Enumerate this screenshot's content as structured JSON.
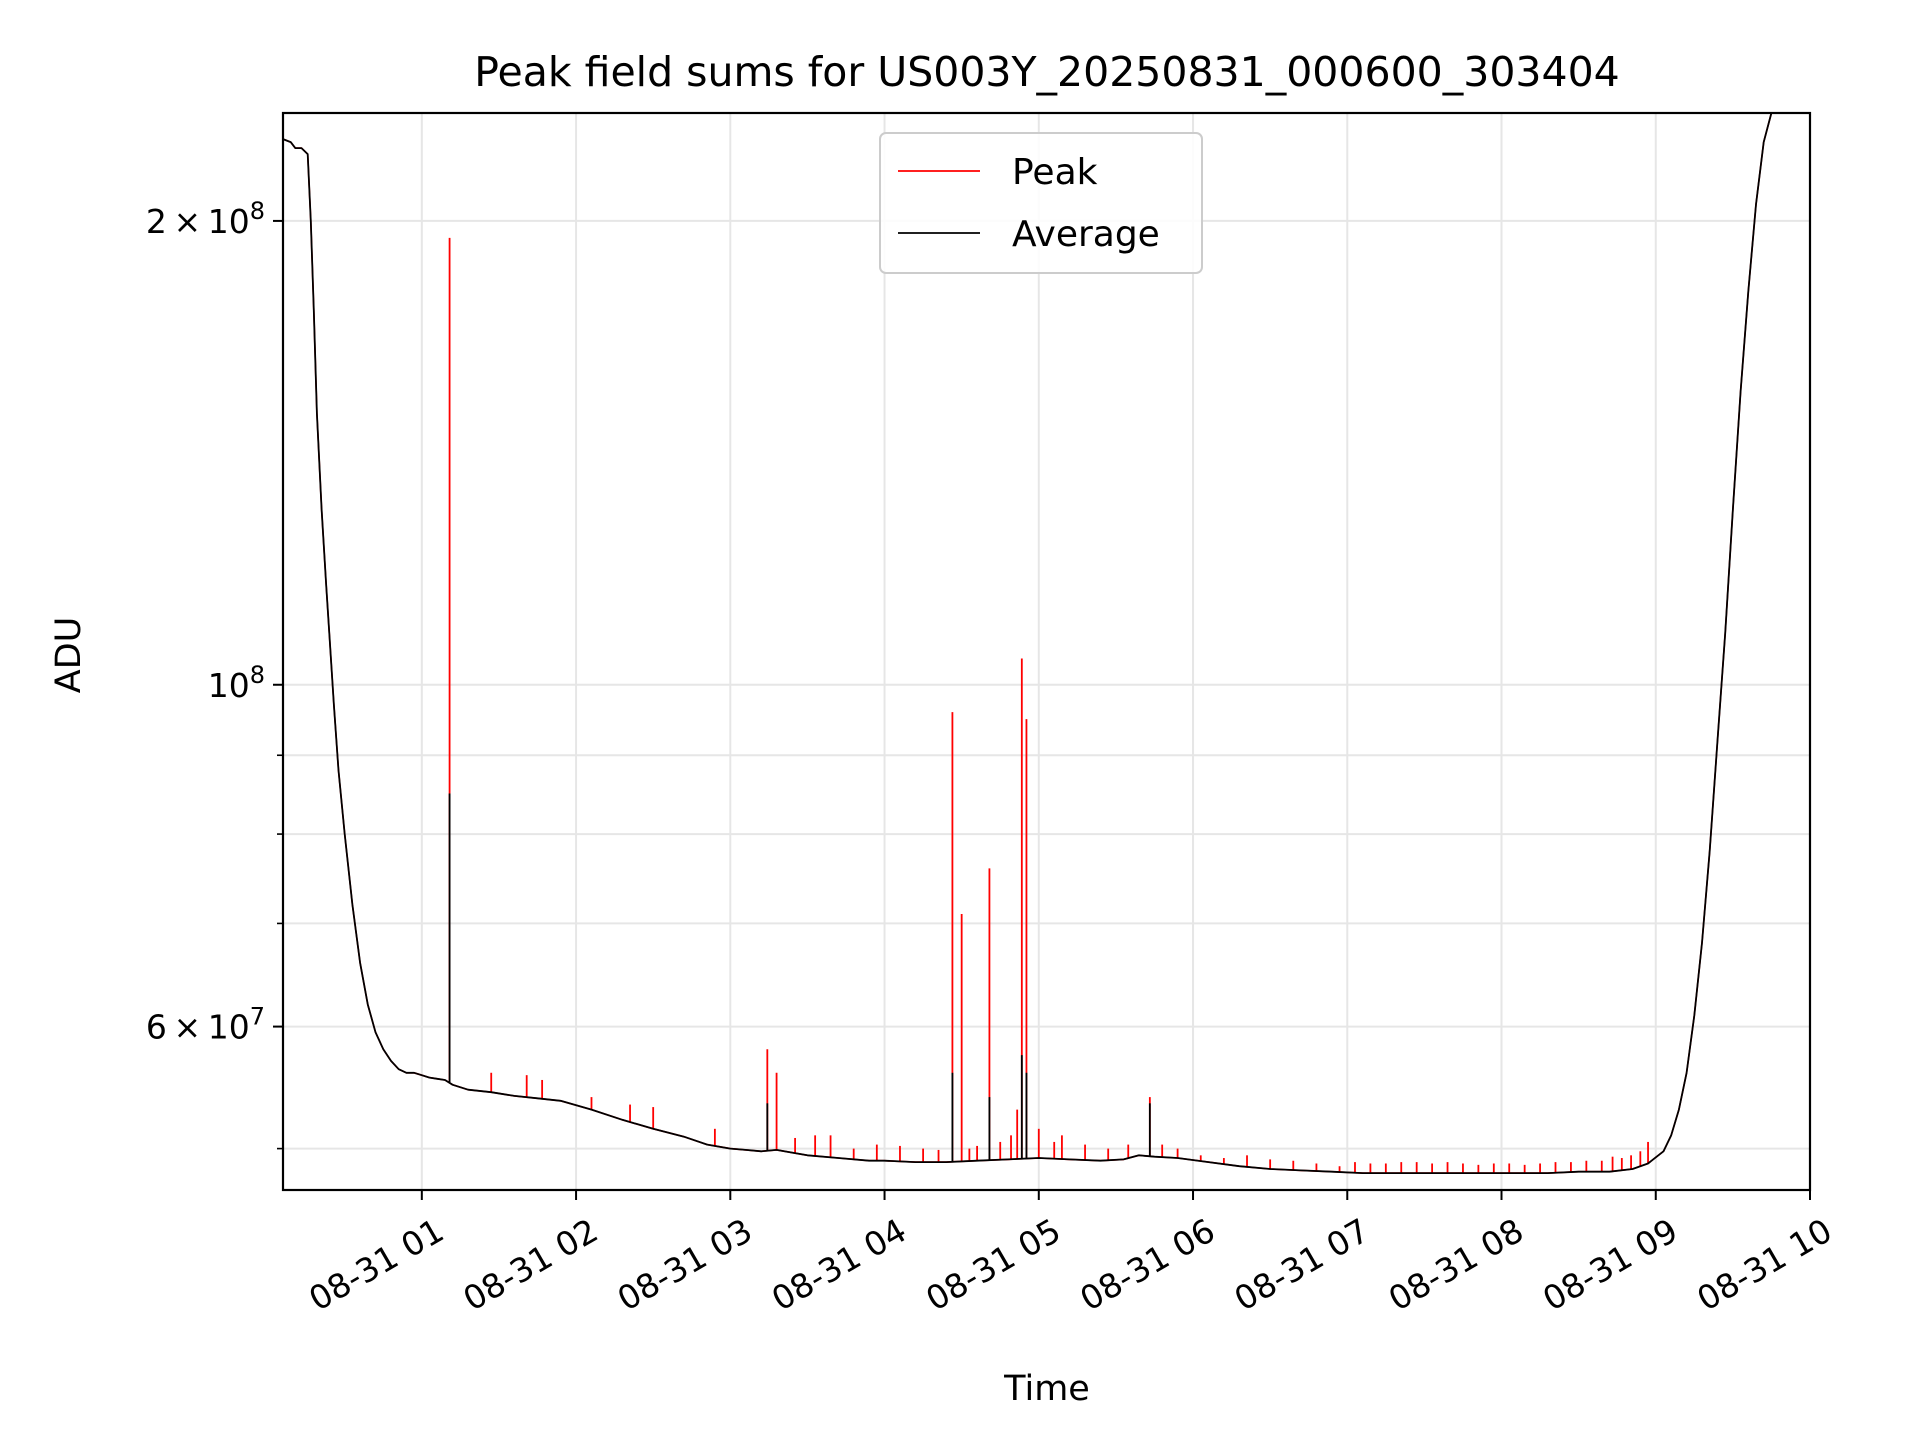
{
  "chart_data": {
    "type": "line",
    "title": "Peak field sums for US003Y_20250831_000600_303404",
    "xlabel": "Time",
    "ylabel": "ADU",
    "y_scale": "log",
    "grid": true,
    "legend_position": "top-center",
    "xlim": [
      0.1,
      10.0
    ],
    "ylim": [
      47000000,
      235000000
    ],
    "x_ticks": [
      {
        "value": 1,
        "label": "08-31 01"
      },
      {
        "value": 2,
        "label": "08-31 02"
      },
      {
        "value": 3,
        "label": "08-31 03"
      },
      {
        "value": 4,
        "label": "08-31 04"
      },
      {
        "value": 5,
        "label": "08-31 05"
      },
      {
        "value": 6,
        "label": "08-31 06"
      },
      {
        "value": 7,
        "label": "08-31 07"
      },
      {
        "value": 8,
        "label": "08-31 08"
      },
      {
        "value": 9,
        "label": "08-31 09"
      },
      {
        "value": 10,
        "label": "08-31 10"
      }
    ],
    "y_ticks_major": [
      {
        "value": 60000000,
        "base": "6",
        "exp": "7"
      },
      {
        "value": 100000000,
        "base": "",
        "exp": "8"
      },
      {
        "value": 200000000,
        "base": "2",
        "exp": "8"
      }
    ],
    "y_ticks_minor": [
      50000000,
      70000000,
      80000000,
      90000000
    ],
    "x_unit_note": "hours after 2025-08-31 00:00",
    "series": [
      {
        "name": "Peak",
        "color": "#ff0000",
        "points": [
          [
            0.1,
            226000000
          ],
          [
            0.15,
            225000000
          ],
          [
            0.18,
            223000000
          ],
          [
            0.22,
            223000000
          ],
          [
            0.26,
            221000000
          ],
          [
            0.28,
            200000000
          ],
          [
            0.3,
            175000000
          ],
          [
            0.32,
            150000000
          ],
          [
            0.35,
            130000000
          ],
          [
            0.38,
            116000000
          ],
          [
            0.4,
            108000000
          ],
          [
            0.43,
            97000000
          ],
          [
            0.46,
            88000000
          ],
          [
            0.5,
            80000000
          ],
          [
            0.55,
            72000000
          ],
          [
            0.6,
            66000000
          ],
          [
            0.65,
            62000000
          ],
          [
            0.7,
            59500000
          ],
          [
            0.75,
            58000000
          ],
          [
            0.8,
            57000000
          ],
          [
            0.85,
            56300000
          ],
          [
            0.9,
            56000000
          ],
          [
            0.95,
            56000000
          ],
          [
            1.0,
            55800000
          ],
          [
            1.05,
            55600000
          ],
          [
            1.1,
            55500000
          ],
          [
            1.15,
            55400000
          ],
          [
            1.2,
            55000000
          ],
          [
            1.3,
            54600000
          ],
          [
            1.45,
            54400000
          ],
          [
            1.6,
            54100000
          ],
          [
            1.75,
            53900000
          ],
          [
            1.9,
            53700000
          ],
          [
            2.1,
            53000000
          ],
          [
            2.3,
            52200000
          ],
          [
            2.5,
            51500000
          ],
          [
            2.7,
            50900000
          ],
          [
            2.85,
            50300000
          ],
          [
            3.0,
            50000000
          ],
          [
            3.1,
            49900000
          ],
          [
            3.2,
            49800000
          ],
          [
            3.3,
            49900000
          ],
          [
            3.4,
            49700000
          ],
          [
            3.5,
            49500000
          ],
          [
            3.7,
            49300000
          ],
          [
            3.9,
            49100000
          ],
          [
            4.0,
            49100000
          ],
          [
            4.2,
            49000000
          ],
          [
            4.4,
            49000000
          ],
          [
            4.6,
            49100000
          ],
          [
            4.8,
            49200000
          ],
          [
            5.0,
            49300000
          ],
          [
            5.2,
            49200000
          ],
          [
            5.4,
            49100000
          ],
          [
            5.55,
            49200000
          ],
          [
            5.65,
            49500000
          ],
          [
            5.75,
            49400000
          ],
          [
            5.9,
            49300000
          ],
          [
            6.1,
            49000000
          ],
          [
            6.3,
            48700000
          ],
          [
            6.5,
            48500000
          ],
          [
            6.7,
            48400000
          ],
          [
            6.9,
            48300000
          ],
          [
            7.1,
            48200000
          ],
          [
            7.3,
            48200000
          ],
          [
            7.5,
            48200000
          ],
          [
            7.7,
            48200000
          ],
          [
            7.9,
            48200000
          ],
          [
            8.1,
            48200000
          ],
          [
            8.3,
            48200000
          ],
          [
            8.5,
            48300000
          ],
          [
            8.7,
            48300000
          ],
          [
            8.85,
            48500000
          ],
          [
            8.95,
            48900000
          ],
          [
            9.05,
            49800000
          ],
          [
            9.1,
            51000000
          ],
          [
            9.15,
            53000000
          ],
          [
            9.2,
            56000000
          ],
          [
            9.25,
            61000000
          ],
          [
            9.3,
            68000000
          ],
          [
            9.35,
            78000000
          ],
          [
            9.4,
            92000000
          ],
          [
            9.45,
            108000000
          ],
          [
            9.5,
            130000000
          ],
          [
            9.55,
            155000000
          ],
          [
            9.6,
            180000000
          ],
          [
            9.65,
            205000000
          ],
          [
            9.7,
            225000000
          ],
          [
            9.75,
            235000000
          ],
          [
            10.0,
            235000000
          ]
        ],
        "spikes": [
          [
            1.18,
            195000000
          ],
          [
            1.45,
            56000000
          ],
          [
            1.68,
            55800000
          ],
          [
            1.78,
            55400000
          ],
          [
            2.1,
            54000000
          ],
          [
            2.35,
            53400000
          ],
          [
            2.5,
            53200000
          ],
          [
            2.9,
            51500000
          ],
          [
            3.24,
            58000000
          ],
          [
            3.3,
            56000000
          ],
          [
            3.42,
            50800000
          ],
          [
            3.55,
            51000000
          ],
          [
            3.65,
            51000000
          ],
          [
            3.8,
            50000000
          ],
          [
            3.95,
            50300000
          ],
          [
            4.1,
            50200000
          ],
          [
            4.25,
            50000000
          ],
          [
            4.35,
            49900000
          ],
          [
            4.44,
            96000000
          ],
          [
            4.5,
            71000000
          ],
          [
            4.55,
            50000000
          ],
          [
            4.6,
            50200000
          ],
          [
            4.68,
            76000000
          ],
          [
            4.75,
            50500000
          ],
          [
            4.82,
            51000000
          ],
          [
            4.86,
            53000000
          ],
          [
            4.89,
            104000000
          ],
          [
            4.92,
            95000000
          ],
          [
            5.0,
            51500000
          ],
          [
            5.1,
            50500000
          ],
          [
            5.15,
            51000000
          ],
          [
            5.3,
            50300000
          ],
          [
            5.45,
            50000000
          ],
          [
            5.58,
            50300000
          ],
          [
            5.72,
            54000000
          ],
          [
            5.8,
            50300000
          ],
          [
            5.9,
            50000000
          ],
          [
            6.05,
            49500000
          ],
          [
            6.2,
            49300000
          ],
          [
            6.35,
            49500000
          ],
          [
            6.5,
            49200000
          ],
          [
            6.65,
            49100000
          ],
          [
            6.8,
            48900000
          ],
          [
            6.95,
            48700000
          ],
          [
            7.05,
            49000000
          ],
          [
            7.15,
            48900000
          ],
          [
            7.25,
            48900000
          ],
          [
            7.35,
            49000000
          ],
          [
            7.45,
            49000000
          ],
          [
            7.55,
            48900000
          ],
          [
            7.65,
            49000000
          ],
          [
            7.75,
            48900000
          ],
          [
            7.85,
            48800000
          ],
          [
            7.95,
            48900000
          ],
          [
            8.05,
            48900000
          ],
          [
            8.15,
            48800000
          ],
          [
            8.25,
            48900000
          ],
          [
            8.35,
            49000000
          ],
          [
            8.45,
            49000000
          ],
          [
            8.55,
            49100000
          ],
          [
            8.65,
            49100000
          ],
          [
            8.72,
            49400000
          ],
          [
            8.78,
            49300000
          ],
          [
            8.84,
            49500000
          ],
          [
            8.9,
            49800000
          ],
          [
            8.95,
            50500000
          ]
        ]
      },
      {
        "name": "Average",
        "color": "#000000",
        "points": [
          [
            0.1,
            226000000
          ],
          [
            0.15,
            225000000
          ],
          [
            0.18,
            223000000
          ],
          [
            0.22,
            223000000
          ],
          [
            0.26,
            221000000
          ],
          [
            0.28,
            200000000
          ],
          [
            0.3,
            175000000
          ],
          [
            0.32,
            150000000
          ],
          [
            0.35,
            130000000
          ],
          [
            0.38,
            116000000
          ],
          [
            0.4,
            108000000
          ],
          [
            0.43,
            97000000
          ],
          [
            0.46,
            88000000
          ],
          [
            0.5,
            80000000
          ],
          [
            0.55,
            72000000
          ],
          [
            0.6,
            66000000
          ],
          [
            0.65,
            62000000
          ],
          [
            0.7,
            59500000
          ],
          [
            0.75,
            58000000
          ],
          [
            0.8,
            57000000
          ],
          [
            0.85,
            56300000
          ],
          [
            0.9,
            56000000
          ],
          [
            0.95,
            56000000
          ],
          [
            1.0,
            55800000
          ],
          [
            1.05,
            55600000
          ],
          [
            1.1,
            55500000
          ],
          [
            1.15,
            55400000
          ],
          [
            1.2,
            55000000
          ],
          [
            1.3,
            54600000
          ],
          [
            1.45,
            54400000
          ],
          [
            1.6,
            54100000
          ],
          [
            1.75,
            53900000
          ],
          [
            1.9,
            53700000
          ],
          [
            2.1,
            53000000
          ],
          [
            2.3,
            52200000
          ],
          [
            2.5,
            51500000
          ],
          [
            2.7,
            50900000
          ],
          [
            2.85,
            50300000
          ],
          [
            3.0,
            50000000
          ],
          [
            3.1,
            49900000
          ],
          [
            3.2,
            49800000
          ],
          [
            3.3,
            49900000
          ],
          [
            3.4,
            49700000
          ],
          [
            3.5,
            49500000
          ],
          [
            3.7,
            49300000
          ],
          [
            3.9,
            49100000
          ],
          [
            4.0,
            49100000
          ],
          [
            4.2,
            49000000
          ],
          [
            4.4,
            49000000
          ],
          [
            4.6,
            49100000
          ],
          [
            4.8,
            49200000
          ],
          [
            5.0,
            49300000
          ],
          [
            5.2,
            49200000
          ],
          [
            5.4,
            49100000
          ],
          [
            5.55,
            49200000
          ],
          [
            5.65,
            49500000
          ],
          [
            5.75,
            49400000
          ],
          [
            5.9,
            49300000
          ],
          [
            6.1,
            49000000
          ],
          [
            6.3,
            48700000
          ],
          [
            6.5,
            48500000
          ],
          [
            6.7,
            48400000
          ],
          [
            6.9,
            48300000
          ],
          [
            7.1,
            48200000
          ],
          [
            7.3,
            48200000
          ],
          [
            7.5,
            48200000
          ],
          [
            7.7,
            48200000
          ],
          [
            7.9,
            48200000
          ],
          [
            8.1,
            48200000
          ],
          [
            8.3,
            48200000
          ],
          [
            8.5,
            48300000
          ],
          [
            8.7,
            48300000
          ],
          [
            8.85,
            48500000
          ],
          [
            8.95,
            48900000
          ],
          [
            9.05,
            49800000
          ],
          [
            9.1,
            51000000
          ],
          [
            9.15,
            53000000
          ],
          [
            9.2,
            56000000
          ],
          [
            9.25,
            61000000
          ],
          [
            9.3,
            68000000
          ],
          [
            9.35,
            78000000
          ],
          [
            9.4,
            92000000
          ],
          [
            9.45,
            108000000
          ],
          [
            9.5,
            130000000
          ],
          [
            9.55,
            155000000
          ],
          [
            9.6,
            180000000
          ],
          [
            9.65,
            205000000
          ],
          [
            9.7,
            225000000
          ],
          [
            9.75,
            235000000
          ],
          [
            10.0,
            235000000
          ]
        ],
        "spikes": [
          [
            1.18,
            85000000
          ],
          [
            3.24,
            53500000
          ],
          [
            4.44,
            56000000
          ],
          [
            4.68,
            54000000
          ],
          [
            4.89,
            57500000
          ],
          [
            4.92,
            56000000
          ],
          [
            5.72,
            53500000
          ]
        ]
      }
    ]
  }
}
